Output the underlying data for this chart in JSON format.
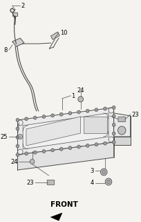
{
  "bg_color": "#f5f3ef",
  "line_color": "#4a4a4a",
  "title": "FRONT",
  "title_fontsize": 7.5,
  "label_fontsize": 6.0
}
